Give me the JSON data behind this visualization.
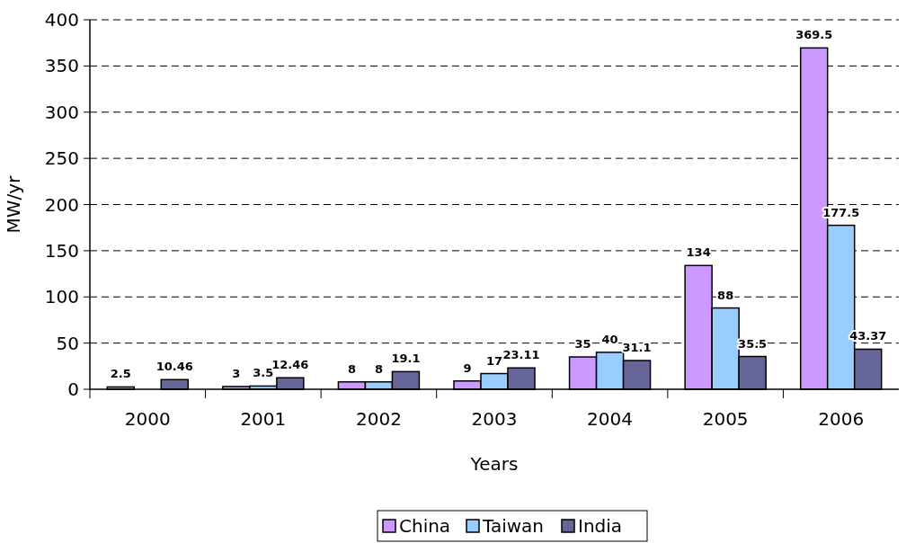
{
  "chart_data": {
    "type": "bar",
    "xlabel": "Years",
    "ylabel": "MW/yr",
    "categories": [
      "2000",
      "2001",
      "2002",
      "2003",
      "2004",
      "2005",
      "2006"
    ],
    "series": [
      {
        "name": "China",
        "color": "#cc99ff",
        "values": [
          2.5,
          3,
          8,
          9,
          35,
          134,
          369.5
        ],
        "value_labels": [
          "2.5",
          "3",
          "8",
          "9",
          "35",
          "134",
          "369.5"
        ]
      },
      {
        "name": "Taiwan",
        "color": "#99ccff",
        "values": [
          null,
          3.5,
          8,
          17,
          40,
          88,
          177.5
        ],
        "value_labels": [
          null,
          "3.5",
          "8",
          "17",
          "40",
          "88",
          "177.5"
        ]
      },
      {
        "name": "India",
        "color": "#666699",
        "values": [
          10.46,
          12.46,
          19.1,
          23.11,
          31.1,
          35.5,
          43.37
        ],
        "value_labels": [
          "10.46",
          "12.46",
          "19.1",
          "23.11",
          "31.1",
          "35.5",
          "43.37"
        ]
      }
    ],
    "ylim": [
      0,
      400
    ],
    "yticks": [
      0,
      50,
      100,
      150,
      200,
      250,
      300,
      350,
      400
    ],
    "grid": "y",
    "legend": "bottom"
  }
}
